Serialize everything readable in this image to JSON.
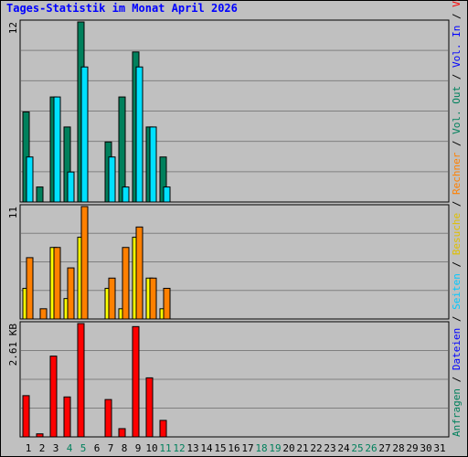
{
  "title": "Tages-Statistik im Monat April 2026",
  "colors": {
    "background": "#c0c0c0",
    "grid": "#808080",
    "title": "#0000ff",
    "anfragen": "#00805c",
    "dateien": "#00e0ff",
    "seiten": "#00e0ff",
    "besuche": "#ffff00",
    "rechner": "#ff8000",
    "kbyte": "#ff0000",
    "weekend_day": "#00805c",
    "weekday": "#000000"
  },
  "right_legend": [
    {
      "text": "Anfragen",
      "color": "#00805c"
    },
    {
      "text": " / ",
      "color": "#000000"
    },
    {
      "text": "Dateien",
      "color": "#0000ff"
    },
    {
      "text": " / ",
      "color": "#000000"
    },
    {
      "text": "Seiten",
      "color": "#00c8ff"
    },
    {
      "text": " / ",
      "color": "#000000"
    },
    {
      "text": "Besuche",
      "color": "#e0c000"
    },
    {
      "text": " / ",
      "color": "#000000"
    },
    {
      "text": "Rechner",
      "color": "#ff8000"
    },
    {
      "text": " / ",
      "color": "#000000"
    },
    {
      "text": "Vol. Out",
      "color": "#00805c"
    },
    {
      "text": " / ",
      "color": "#000000"
    },
    {
      "text": "Vol. In",
      "color": "#0000ff"
    },
    {
      "text": " / ",
      "color": "#000000"
    },
    {
      "text": "Volumen",
      "color": "#ff0000"
    }
  ],
  "chart_data": [
    {
      "type": "bar",
      "panel": "hits",
      "ymax_label": "12",
      "ylim": [
        0,
        12
      ],
      "days": [
        1,
        2,
        3,
        4,
        5,
        6,
        7,
        8,
        9,
        10,
        11,
        12,
        13,
        14,
        15,
        16,
        17,
        18,
        19,
        20,
        21,
        22,
        23,
        24,
        25,
        26,
        27,
        28,
        29,
        30,
        31
      ],
      "series": [
        {
          "name": "Anfragen",
          "values": [
            6,
            1,
            7,
            5,
            12,
            0,
            4,
            7,
            10,
            5,
            3,
            0,
            0,
            0,
            0,
            0,
            0,
            0,
            0,
            0,
            0,
            0,
            0,
            0,
            0,
            0,
            0,
            0,
            0,
            0,
            0
          ]
        },
        {
          "name": "Dateien",
          "values": [
            3,
            0,
            7,
            2,
            9,
            0,
            3,
            1,
            9,
            5,
            1,
            0,
            0,
            0,
            0,
            0,
            0,
            0,
            0,
            0,
            0,
            0,
            0,
            0,
            0,
            0,
            0,
            0,
            0,
            0,
            0
          ]
        }
      ]
    },
    {
      "type": "bar",
      "panel": "visits",
      "ymax_label": "11",
      "ylim": [
        0,
        11
      ],
      "days": [
        1,
        2,
        3,
        4,
        5,
        6,
        7,
        8,
        9,
        10,
        11,
        12,
        13,
        14,
        15,
        16,
        17,
        18,
        19,
        20,
        21,
        22,
        23,
        24,
        25,
        26,
        27,
        28,
        29,
        30,
        31
      ],
      "series": [
        {
          "name": "Besuche",
          "values": [
            3,
            0,
            7,
            2,
            8,
            0,
            3,
            1,
            8,
            4,
            1,
            0,
            0,
            0,
            0,
            0,
            0,
            0,
            0,
            0,
            0,
            0,
            0,
            0,
            0,
            0,
            0,
            0,
            0,
            0,
            0
          ]
        },
        {
          "name": "Rechner",
          "values": [
            6,
            1,
            7,
            5,
            11,
            0,
            4,
            7,
            9,
            4,
            3,
            0,
            0,
            0,
            0,
            0,
            0,
            0,
            0,
            0,
            0,
            0,
            0,
            0,
            0,
            0,
            0,
            0,
            0,
            0,
            0
          ]
        }
      ]
    },
    {
      "type": "bar",
      "panel": "volume",
      "ymax_label": "2.61 KB",
      "ylim": [
        0,
        2.61
      ],
      "days": [
        1,
        2,
        3,
        4,
        5,
        6,
        7,
        8,
        9,
        10,
        11,
        12,
        13,
        14,
        15,
        16,
        17,
        18,
        19,
        20,
        21,
        22,
        23,
        24,
        25,
        26,
        27,
        28,
        29,
        30,
        31
      ],
      "series": [
        {
          "name": "Volumen",
          "values": [
            0.95,
            0.07,
            1.86,
            0.92,
            2.61,
            0,
            0.86,
            0.19,
            2.54,
            1.36,
            0.38,
            0,
            0,
            0,
            0,
            0,
            0,
            0,
            0,
            0,
            0,
            0,
            0,
            0,
            0,
            0,
            0,
            0,
            0,
            0,
            0
          ]
        }
      ]
    }
  ],
  "x_labels": [
    "1",
    "2",
    "3",
    "4",
    "5",
    "6",
    "7",
    "8",
    "9",
    "10",
    "11",
    "12",
    "13",
    "14",
    "15",
    "16",
    "17",
    "18",
    "19",
    "20",
    "21",
    "22",
    "23",
    "24",
    "25",
    "26",
    "27",
    "28",
    "29",
    "30",
    "31"
  ],
  "weekend_days": [
    4,
    5,
    11,
    12,
    18,
    19,
    25,
    26
  ]
}
